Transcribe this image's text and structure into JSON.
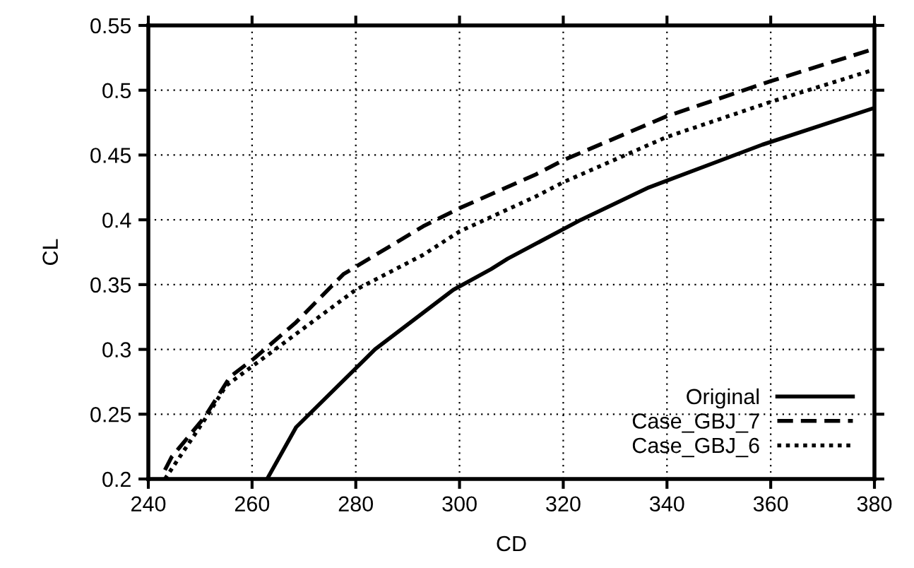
{
  "chart_data": {
    "type": "line",
    "xlabel": "CD",
    "ylabel": "CL",
    "xlim": [
      240,
      380
    ],
    "xticks": [
      240,
      260,
      280,
      300,
      320,
      340,
      360,
      380
    ],
    "ylim": [
      0.2,
      0.55
    ],
    "yticks": [
      0.2,
      0.25,
      0.3,
      0.35,
      0.4,
      0.45,
      0.5,
      0.55
    ],
    "grid": true,
    "legend": "bottom right",
    "series": [
      {
        "name": "Original",
        "color": "#000000",
        "line_style": "solid",
        "x": [
          262.9,
          268.5,
          283.7,
          298.8,
          306.1,
          309.3,
          323.4,
          336.5,
          358.4,
          379.7
        ],
        "values": [
          0.2,
          0.24,
          0.3,
          0.346,
          0.362,
          0.37,
          0.4,
          0.425,
          0.458,
          0.486
        ]
      },
      {
        "name": "Case_GBJ_7",
        "color": "#000000",
        "line_style": "dashed",
        "x": [
          243.2,
          244.5,
          250.9,
          255.8,
          260.4,
          268.5,
          277.6,
          293,
          300,
          314.7,
          320,
          340,
          360,
          380
        ],
        "values": [
          0.207,
          0.217,
          0.248,
          0.279,
          0.293,
          0.321,
          0.358,
          0.395,
          0.409,
          0.435,
          0.446,
          0.48,
          0.507,
          0.532
        ]
      },
      {
        "name": "Case_GBJ_6",
        "color": "#000000",
        "line_style": "dotted",
        "x": [
          243.2,
          250.9,
          255,
          260.4,
          268.5,
          280,
          293,
          300,
          314.7,
          320,
          340,
          360,
          380
        ],
        "values": [
          0.2,
          0.246,
          0.272,
          0.288,
          0.312,
          0.346,
          0.373,
          0.391,
          0.418,
          0.429,
          0.464,
          0.491,
          0.516
        ]
      }
    ]
  }
}
